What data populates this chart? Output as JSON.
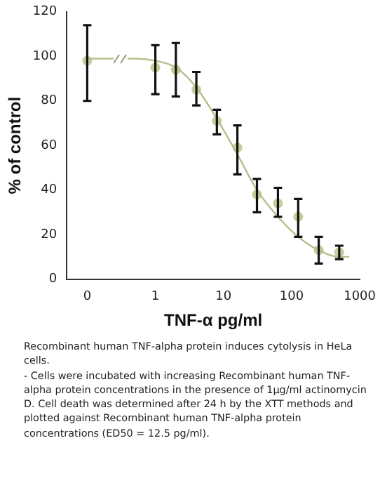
{
  "chart_data": {
    "type": "scatter",
    "xlabel": "TNF-α pg/ml",
    "ylabel": "% of control",
    "log": "x",
    "xlim": [
      0.05,
      1000
    ],
    "xticks": [
      {
        "value": 0.1,
        "label": "0"
      },
      1,
      10,
      100,
      1000
    ],
    "ylim": [
      0,
      120
    ],
    "yticks": [
      0,
      20,
      40,
      60,
      80,
      100,
      120
    ],
    "marker": "circle",
    "annotations": [
      "Recombinant human TNF-alpha protein induces cytolysis in HeLa cells.",
      "- Cells were incubated with increasing Recombinant human TNF-alpha protein concentrations in the presence of 1µg/ml actinomycin D. Cell death was determined after 24 h by the XTT methods and plotted against Recombinant human TNF-alpha protein concentrations (ED50 = 12.5 pg/ml)."
    ],
    "series": [
      {
        "type": "line",
        "color": "#b3bf8a",
        "marker": "none",
        "x": [
          0.1,
          0.5,
          1,
          2,
          4,
          8,
          16,
          31,
          63,
          125,
          250,
          500,
          700
        ],
        "values": [
          99,
          99,
          98,
          95,
          86,
          72,
          56,
          40,
          28,
          19,
          13,
          10,
          10
        ]
      },
      {
        "type": "scatter",
        "color": "#c2cf98",
        "x": [
          0.1,
          1,
          2,
          4,
          8,
          16,
          31,
          63,
          125,
          250,
          500
        ],
        "values": [
          98,
          95,
          94,
          85,
          71,
          59,
          38,
          34,
          28,
          13,
          12
        ],
        "errors": [
          [
            80,
            114
          ],
          [
            83,
            105
          ],
          [
            82,
            106
          ],
          [
            78,
            93
          ],
          [
            65,
            76
          ],
          [
            47,
            69
          ],
          [
            30,
            45
          ],
          [
            28,
            41
          ],
          [
            19,
            36
          ],
          [
            7,
            19
          ],
          [
            9,
            15
          ]
        ]
      }
    ]
  }
}
